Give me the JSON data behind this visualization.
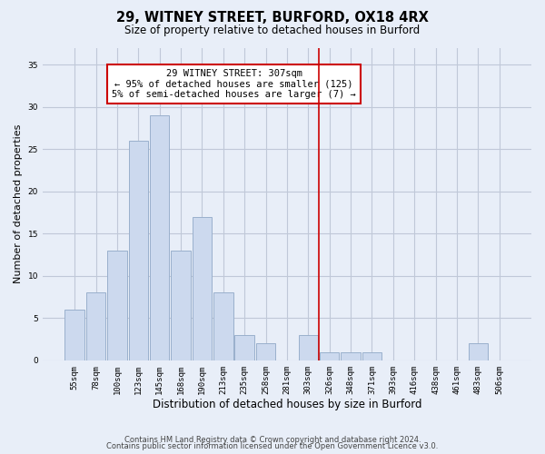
{
  "title1": "29, WITNEY STREET, BURFORD, OX18 4RX",
  "title2": "Size of property relative to detached houses in Burford",
  "xlabel": "Distribution of detached houses by size in Burford",
  "ylabel": "Number of detached properties",
  "bin_labels": [
    "55sqm",
    "78sqm",
    "100sqm",
    "123sqm",
    "145sqm",
    "168sqm",
    "190sqm",
    "213sqm",
    "235sqm",
    "258sqm",
    "281sqm",
    "303sqm",
    "326sqm",
    "348sqm",
    "371sqm",
    "393sqm",
    "416sqm",
    "438sqm",
    "461sqm",
    "483sqm",
    "506sqm"
  ],
  "bar_values": [
    6,
    8,
    13,
    26,
    29,
    13,
    17,
    8,
    3,
    2,
    0,
    3,
    1,
    1,
    1,
    0,
    0,
    0,
    0,
    2,
    0
  ],
  "bar_color": "#ccd9ee",
  "bar_edge_color": "#9ab0cc",
  "grid_color": "#c0c8d8",
  "bg_color": "#e8eef8",
  "red_line_x": 11.5,
  "annotation_text": "29 WITNEY STREET: 307sqm\n← 95% of detached houses are smaller (125)\n5% of semi-detached houses are larger (7) →",
  "annotation_box_color": "#ffffff",
  "annotation_text_color": "#000000",
  "red_color": "#cc0000",
  "footer1": "Contains HM Land Registry data © Crown copyright and database right 2024.",
  "footer2": "Contains public sector information licensed under the Open Government Licence v3.0.",
  "ylim": [
    0,
    37
  ],
  "yticks": [
    0,
    5,
    10,
    15,
    20,
    25,
    30,
    35
  ],
  "title1_fontsize": 10.5,
  "title2_fontsize": 8.5,
  "xlabel_fontsize": 8.5,
  "ylabel_fontsize": 8,
  "tick_fontsize": 6.5,
  "footer_fontsize": 6,
  "ann_fontsize": 7.5
}
